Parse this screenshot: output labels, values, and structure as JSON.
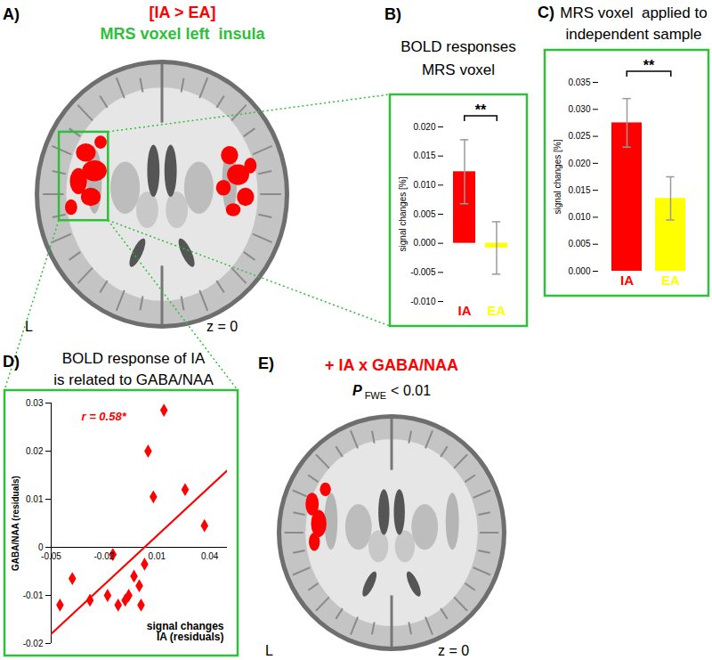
{
  "panels": {
    "A": {
      "panel": "A)",
      "contrast": "[IA > EA]",
      "voxel": "MRS voxel left  insula",
      "side": "L",
      "slice": "z = 0"
    },
    "E": {
      "panel": "E)",
      "title": "+ IA x GABA/NAA",
      "stat": {
        "symbol": "P",
        "subscript": "FWE",
        "text": "< 0.01"
      },
      "side": "L",
      "slice": "z = 0"
    }
  },
  "chart_data": [
    {
      "panel": "B)",
      "type": "bar",
      "title": "BOLD responses\nMRS voxel",
      "y_label": "signal changes [%]",
      "categories": [
        "IA",
        "EA"
      ],
      "values": [
        0.0123,
        -0.0008
      ],
      "errors": [
        0.0055,
        0.0045
      ],
      "colors": [
        "#ff0000",
        "#ffff00"
      ],
      "annotation": "**",
      "ylim": [
        -0.01,
        0.02
      ],
      "yticks": [
        {
          "value": -0.01,
          "label": "-0.010"
        },
        {
          "value": -0.005,
          "label": "-0.005"
        },
        {
          "value": 0,
          "label": "0.000"
        },
        {
          "value": 0.005,
          "label": "0.005"
        },
        {
          "value": 0.01,
          "label": "0.010"
        },
        {
          "value": 0.015,
          "label": "0.015"
        },
        {
          "value": 0.02,
          "label": "0.020"
        }
      ]
    },
    {
      "panel": "C)",
      "type": "bar",
      "title": "MRS voxel  applied to\nindependent sample",
      "y_label": "signal changes [%]",
      "categories": [
        "IA",
        "EA"
      ],
      "values": [
        0.0275,
        0.0135
      ],
      "errors": [
        0.0045,
        0.004
      ],
      "colors": [
        "#ff0000",
        "#ffff00"
      ],
      "annotation": "**",
      "ylim": [
        0,
        0.035
      ],
      "yticks": [
        {
          "value": 0,
          "label": "0.000"
        },
        {
          "value": 0.005,
          "label": "0.005"
        },
        {
          "value": 0.01,
          "label": "0.010"
        },
        {
          "value": 0.015,
          "label": "0.015"
        },
        {
          "value": 0.02,
          "label": "0.020"
        },
        {
          "value": 0.025,
          "label": "0.025"
        },
        {
          "value": 0.03,
          "label": "0.030"
        },
        {
          "value": 0.035,
          "label": "0.035"
        }
      ]
    },
    {
      "panel": "D)",
      "type": "scatter",
      "title": "BOLD response of IA\nis related to GABA/NAA",
      "x_label": "signal changes\nIA (residuals)",
      "y_label": "GABA/NAA (residuals)",
      "annotation": "r = 0.58*",
      "color": "#ff0000",
      "marker": "diamond",
      "x": [
        -0.045,
        -0.038,
        -0.028,
        -0.018,
        -0.015,
        -0.012,
        -0.008,
        -0.006,
        -0.003,
        0.0,
        0.001,
        0.003,
        0.005,
        0.008,
        0.014,
        0.026,
        0.037
      ],
      "values": [
        -0.012,
        -0.0065,
        -0.011,
        -0.01,
        -0.0015,
        -0.012,
        -0.011,
        -0.01,
        -0.006,
        -0.008,
        -0.012,
        -0.0035,
        0.02,
        0.0105,
        0.0285,
        0.012,
        0.0045
      ],
      "fit": {
        "x": [
          -0.05,
          0.05
        ],
        "values": [
          -0.018,
          0.016
        ],
        "color": "#ff0000"
      },
      "xlim": [
        -0.05,
        0.05
      ],
      "xticks": [
        -0.05,
        -0.02,
        0.01,
        0.04
      ],
      "ylim": [
        -0.02,
        0.03
      ],
      "yticks": [
        -0.02,
        -0.01,
        0,
        0.01,
        0.02,
        0.03
      ]
    }
  ]
}
